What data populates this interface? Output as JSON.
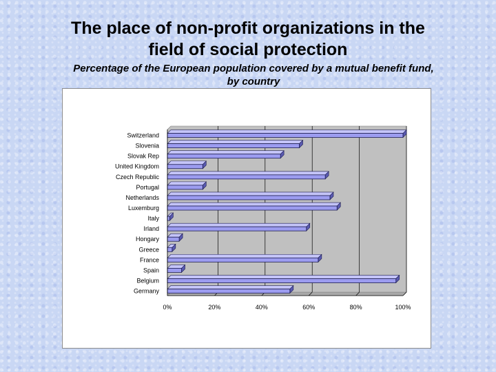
{
  "slide": {
    "title_line1": "The place of non-profit organizations in the",
    "title_line2": "field of social protection",
    "subtitle_line1": "Percentage of the European population covered by a mutual benefit fund,",
    "subtitle_line2": "by country"
  },
  "colors": {
    "bar_fill": "#9c9cf0",
    "bar_outline": "#1c1c50",
    "plot_background": "#c0c0c0",
    "panel_background": "#ffffff"
  },
  "chart_data": {
    "type": "bar",
    "orientation": "horizontal",
    "three_d": true,
    "categories": [
      "Switzerland",
      "Slovenia",
      "Slovak Rep",
      "United Kingdom",
      "Czech Republic",
      "Portugal",
      "Netherlands",
      "Luxemburg",
      "Italy",
      "Irland",
      "Hongary",
      "Greece",
      "France",
      "Spain",
      "Belgium",
      "Germany"
    ],
    "values": [
      100,
      56,
      48,
      15,
      67,
      15,
      69,
      72,
      1,
      59,
      5,
      2,
      64,
      6,
      97,
      52
    ],
    "xlim": [
      0,
      100
    ],
    "x_ticks": [
      "0%",
      "20%",
      "40%",
      "60%",
      "80%",
      "100%"
    ],
    "gridlines": "vertical",
    "legend": "none"
  }
}
